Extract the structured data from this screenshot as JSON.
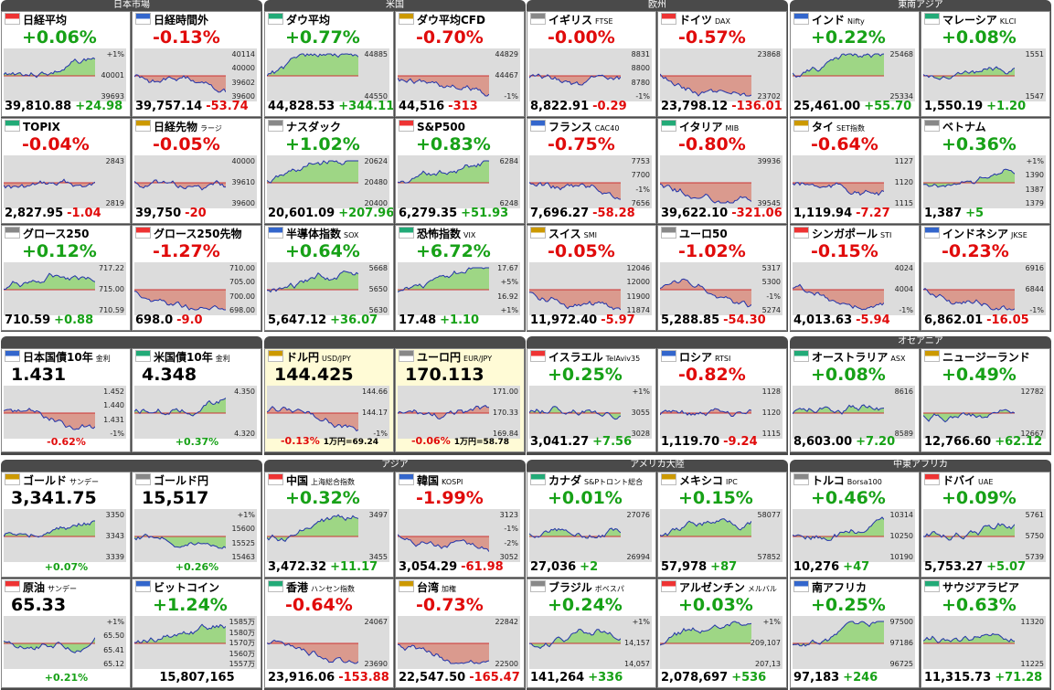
{
  "groups": [
    {
      "title": "日本市場",
      "middle_title": null,
      "lower_title": null,
      "tiles": [
        {
          "name": "日経平均",
          "head": "+0.06%",
          "price": "39,810.88",
          "diff": "+24.98",
          "trend": "up",
          "labels": [
            "+1%",
            "40001",
            "39693"
          ]
        },
        {
          "name": "日経時間外",
          "head": "-0.13%",
          "price": "39,757.14",
          "diff": "-53.74",
          "trend": "down",
          "labels": [
            "40114",
            "40000",
            "39602",
            "39600"
          ]
        },
        {
          "name": "TOPIX",
          "head": "-0.04%",
          "price": "2,827.95",
          "diff": "-1.04",
          "trend": "down",
          "labels": [
            "2843",
            "2819"
          ]
        },
        {
          "name": "日経先物",
          "code": "ラージ",
          "head": "-0.05%",
          "price": "39,750",
          "diff": "-20",
          "trend": "down",
          "labels": [
            "40000",
            "39610",
            "39600"
          ]
        },
        {
          "name": "グロース250",
          "head": "+0.12%",
          "price": "710.59",
          "diff": "+0.88",
          "trend": "up",
          "labels": [
            "717.22",
            "715.00",
            "710.59"
          ]
        },
        {
          "name": "グロース250先物",
          "head": "-1.27%",
          "price": "698.0",
          "diff": "-9.0",
          "trend": "down",
          "labels": [
            "710.00",
            "705.00",
            "700.00",
            "698.00"
          ]
        },
        {
          "name": "日本国債10年",
          "code": "金利",
          "kind": "quote",
          "head": "1.431",
          "diff": "-0.62%",
          "trend": "down",
          "labels": [
            "1.452",
            "1.440",
            "1.431",
            "-1%"
          ]
        },
        {
          "name": "米国債10年",
          "code": "金利",
          "kind": "quote",
          "head": "4.348",
          "diff": "+0.37%",
          "trend": "up",
          "labels": [
            "4.350",
            "4.320"
          ]
        },
        {
          "name": "ゴールド",
          "code": "サンデー",
          "kind": "quote",
          "head": "3,341.75",
          "diff": "+0.07%",
          "trend": "up",
          "labels": [
            "3350",
            "3343",
            "3339"
          ]
        },
        {
          "name": "ゴールド円",
          "kind": "quote",
          "head": "15,517",
          "diff": "+0.26%",
          "trend": "up",
          "labels": [
            "+1%",
            "15600",
            "15525",
            "15463"
          ]
        },
        {
          "name": "原油",
          "code": "サンデー",
          "kind": "quote",
          "head": "65.33",
          "diff": "+0.21%",
          "trend": "up",
          "labels": [
            "+1%",
            "65.50",
            "65.41",
            "65.12"
          ]
        },
        {
          "name": "ビットコイン",
          "head": "+1.24%",
          "price": "15,807,165",
          "trend": "up",
          "labels": [
            "1585万",
            "1580万",
            "1570万",
            "1560万",
            "1557万"
          ]
        }
      ]
    },
    {
      "title": "米国",
      "middle_title": null,
      "lower_title": "アジア",
      "tiles": [
        {
          "name": "ダウ平均",
          "head": "+0.77%",
          "price": "44,828.53",
          "diff": "+344.11",
          "trend": "up",
          "labels": [
            "44885",
            "44550"
          ]
        },
        {
          "name": "ダウ平均CFD",
          "head": "-0.70%",
          "price": "44,516",
          "diff": "-313",
          "trend": "down",
          "labels": [
            "44829",
            "44467",
            "-1%"
          ]
        },
        {
          "name": "ナスダック",
          "head": "+1.02%",
          "price": "20,601.09",
          "diff": "+207.96",
          "trend": "up",
          "labels": [
            "20624",
            "20480",
            "20400"
          ]
        },
        {
          "name": "S&P500",
          "head": "+0.83%",
          "price": "6,279.35",
          "diff": "+51.93",
          "trend": "up",
          "labels": [
            "6284",
            "6248"
          ]
        },
        {
          "name": "半導体指数",
          "code": "SOX",
          "head": "+0.64%",
          "price": "5,647.12",
          "diff": "+36.07",
          "trend": "up",
          "labels": [
            "5668",
            "5650",
            "5630"
          ]
        },
        {
          "name": "恐怖指数",
          "code": "VIX",
          "head": "+6.72%",
          "price": "17.48",
          "diff": "+1.10",
          "trend": "up",
          "labels": [
            "17.67",
            "+5%",
            "16.92",
            "+1%"
          ]
        },
        {
          "name": "ドル円",
          "code": "USD/JPY",
          "kind": "quote",
          "head": "144.425",
          "diff": "-0.13%",
          "extra": "1万円=69.24",
          "trend": "down",
          "labels": [
            "144.66",
            "144.17",
            "-1%"
          ]
        },
        {
          "name": "ユーロ円",
          "code": "EUR/JPY",
          "kind": "quote",
          "head": "170.113",
          "diff": "-0.06%",
          "extra": "1万円=58.78",
          "trend": "down",
          "labels": [
            "171.00",
            "170.33",
            "169.84"
          ]
        },
        {
          "name": "中国",
          "code": "上海総合指数",
          "head": "+0.32%",
          "price": "3,472.32",
          "diff": "+11.17",
          "trend": "up",
          "labels": [
            "3497",
            "3455"
          ]
        },
        {
          "name": "韓国",
          "code": "KOSPI",
          "head": "-1.99%",
          "price": "3,054.29",
          "diff": "-61.98",
          "trend": "down",
          "labels": [
            "3123",
            "-1%",
            "-2%",
            "3052"
          ]
        },
        {
          "name": "香港",
          "code": "ハンセン指数",
          "head": "-0.64%",
          "price": "23,916.06",
          "diff": "-153.88",
          "trend": "down",
          "labels": [
            "24067",
            "23690"
          ]
        },
        {
          "name": "台湾",
          "code": "加権",
          "head": "-0.73%",
          "price": "22,547.50",
          "diff": "-165.47",
          "trend": "down",
          "labels": [
            "22842",
            "22500"
          ]
        }
      ]
    },
    {
      "title": "欧州",
      "middle_title": null,
      "lower_title": "アメリカ大陸",
      "tiles": [
        {
          "name": "イギリス",
          "code": "FTSE",
          "head": "-0.00%",
          "price": "8,822.91",
          "diff": "-0.29",
          "trend": "down",
          "labels": [
            "8831",
            "8800",
            "8780",
            "-1%"
          ]
        },
        {
          "name": "ドイツ",
          "code": "DAX",
          "head": "-0.57%",
          "price": "23,798.12",
          "diff": "-136.01",
          "trend": "down",
          "labels": [
            "23868",
            "23702"
          ]
        },
        {
          "name": "フランス",
          "code": "CAC40",
          "head": "-0.75%",
          "price": "7,696.27",
          "diff": "-58.28",
          "trend": "down",
          "labels": [
            "7753",
            "7700",
            "-1%",
            "7656"
          ]
        },
        {
          "name": "イタリア",
          "code": "MIB",
          "head": "-0.80%",
          "price": "39,622.10",
          "diff": "-321.06",
          "trend": "down",
          "labels": [
            "39936",
            "39545"
          ]
        },
        {
          "name": "スイス",
          "code": "SMI",
          "head": "-0.05%",
          "price": "11,972.40",
          "diff": "-5.97",
          "trend": "down",
          "labels": [
            "12046",
            "12000",
            "11900",
            "11874"
          ]
        },
        {
          "name": "ユーロ50",
          "head": "-1.02%",
          "price": "5,288.85",
          "diff": "-54.30",
          "trend": "down",
          "labels": [
            "5317",
            "5300",
            "-1%",
            "5274"
          ]
        },
        {
          "name": "イスラエル",
          "code": "TelAviv35",
          "head": "+0.25%",
          "price": "3,041.27",
          "diff": "+7.56",
          "trend": "up",
          "labels": [
            "+1%",
            "3055",
            "3028"
          ]
        },
        {
          "name": "ロシア",
          "code": "RTSI",
          "head": "-0.82%",
          "price": "1,119.70",
          "diff": "-9.24",
          "trend": "down",
          "labels": [
            "1128",
            "1120",
            "1115"
          ]
        },
        {
          "name": "カナダ",
          "code": "S&Pトロント総合",
          "head": "+0.01%",
          "price": "27,036",
          "diff": "+2",
          "trend": "up",
          "labels": [
            "27076",
            "26994"
          ]
        },
        {
          "name": "メキシコ",
          "code": "IPC",
          "head": "+0.15%",
          "price": "57,978",
          "diff": "+87",
          "trend": "up",
          "labels": [
            "58077",
            "57852"
          ]
        },
        {
          "name": "ブラジル",
          "code": "ボベスパ",
          "head": "+0.24%",
          "price": "141,264",
          "diff": "+336",
          "trend": "up",
          "labels": [
            "+1%",
            "14,157",
            "14,057"
          ]
        },
        {
          "name": "アルゼンチン",
          "code": "メルバル",
          "head": "+0.03%",
          "price": "2,078,697",
          "diff": "+536",
          "trend": "up",
          "labels": [
            "+1%",
            "209,107",
            "207,13"
          ]
        }
      ]
    },
    {
      "title": "東南アジア",
      "middle_title": "オセアニア",
      "lower_title": "中東アフリカ",
      "tiles": [
        {
          "name": "インド",
          "code": "Nifty",
          "head": "+0.22%",
          "price": "25,461.00",
          "diff": "+55.70",
          "trend": "up",
          "labels": [
            "25468",
            "25334"
          ]
        },
        {
          "name": "マレーシア",
          "code": "KLCI",
          "head": "+0.08%",
          "price": "1,550.19",
          "diff": "+1.20",
          "trend": "up",
          "labels": [
            "1551",
            "1547"
          ]
        },
        {
          "name": "タイ",
          "code": "SET指数",
          "head": "-0.64%",
          "price": "1,119.94",
          "diff": "-7.27",
          "trend": "down",
          "labels": [
            "1127",
            "1120",
            "1115"
          ]
        },
        {
          "name": "ベトナム",
          "head": "+0.36%",
          "price": "1,387",
          "diff": "+5",
          "trend": "up",
          "labels": [
            "+1%",
            "1390",
            "1387",
            "1379"
          ]
        },
        {
          "name": "シンガポール",
          "code": "STI",
          "head": "-0.15%",
          "price": "4,013.63",
          "diff": "-5.94",
          "trend": "down",
          "labels": [
            "4024",
            "4004",
            "-1%"
          ]
        },
        {
          "name": "インドネシア",
          "code": "JKSE",
          "head": "-0.23%",
          "price": "6,862.01",
          "diff": "-16.05",
          "trend": "down",
          "labels": [
            "6916",
            "6844",
            "-1%"
          ]
        },
        {
          "name": "オーストラリア",
          "code": "ASX",
          "head": "+0.08%",
          "price": "8,603.00",
          "diff": "+7.20",
          "trend": "up",
          "labels": [
            "8616",
            "8589"
          ]
        },
        {
          "name": "ニュージーランド",
          "head": "+0.49%",
          "price": "12,766.60",
          "diff": "+62.12",
          "trend": "up",
          "labels": [
            "12782",
            "12667"
          ]
        },
        {
          "name": "トルコ",
          "code": "Borsa100",
          "head": "+0.46%",
          "price": "10,276",
          "diff": "+47",
          "trend": "up",
          "labels": [
            "10314",
            "10250",
            "10190"
          ]
        },
        {
          "name": "ドバイ",
          "code": "UAE",
          "head": "+0.09%",
          "price": "5,753.27",
          "diff": "+5.07",
          "trend": "up",
          "labels": [
            "5761",
            "5750",
            "5739"
          ]
        },
        {
          "name": "南アフリカ",
          "head": "+0.25%",
          "price": "97,183",
          "diff": "+246",
          "trend": "up",
          "labels": [
            "97500",
            "97186",
            "96725"
          ]
        },
        {
          "name": "サウジアラビア",
          "head": "+0.63%",
          "price": "11,315.73",
          "diff": "+71.28",
          "trend": "up",
          "labels": [
            "11320",
            "11225"
          ]
        }
      ]
    }
  ]
}
